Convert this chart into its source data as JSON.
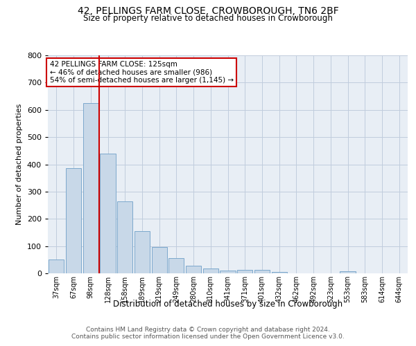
{
  "title": "42, PELLINGS FARM CLOSE, CROWBOROUGH, TN6 2BF",
  "subtitle": "Size of property relative to detached houses in Crowborough",
  "xlabel": "Distribution of detached houses by size in Crowborough",
  "ylabel": "Number of detached properties",
  "footer_line1": "Contains HM Land Registry data © Crown copyright and database right 2024.",
  "footer_line2": "Contains public sector information licensed under the Open Government Licence v3.0.",
  "bin_labels": [
    "37sqm",
    "67sqm",
    "98sqm",
    "128sqm",
    "158sqm",
    "189sqm",
    "219sqm",
    "249sqm",
    "280sqm",
    "310sqm",
    "341sqm",
    "371sqm",
    "401sqm",
    "432sqm",
    "462sqm",
    "492sqm",
    "523sqm",
    "553sqm",
    "583sqm",
    "614sqm",
    "644sqm"
  ],
  "bar_values": [
    50,
    385,
    625,
    440,
    265,
    155,
    97,
    55,
    28,
    18,
    10,
    12,
    12,
    5,
    0,
    0,
    0,
    8,
    0,
    0,
    0
  ],
  "bar_color": "#c8d8e8",
  "bar_edgecolor": "#7ca8cc",
  "grid_color": "#c0ccdd",
  "background_color": "#e8eef5",
  "vline_x": 2.5,
  "vline_color": "#cc0000",
  "annotation_text": "42 PELLINGS FARM CLOSE: 125sqm\n← 46% of detached houses are smaller (986)\n54% of semi-detached houses are larger (1,145) →",
  "annotation_box_edgecolor": "#cc0000",
  "ylim": [
    0,
    800
  ],
  "yticks": [
    0,
    100,
    200,
    300,
    400,
    500,
    600,
    700,
    800
  ]
}
